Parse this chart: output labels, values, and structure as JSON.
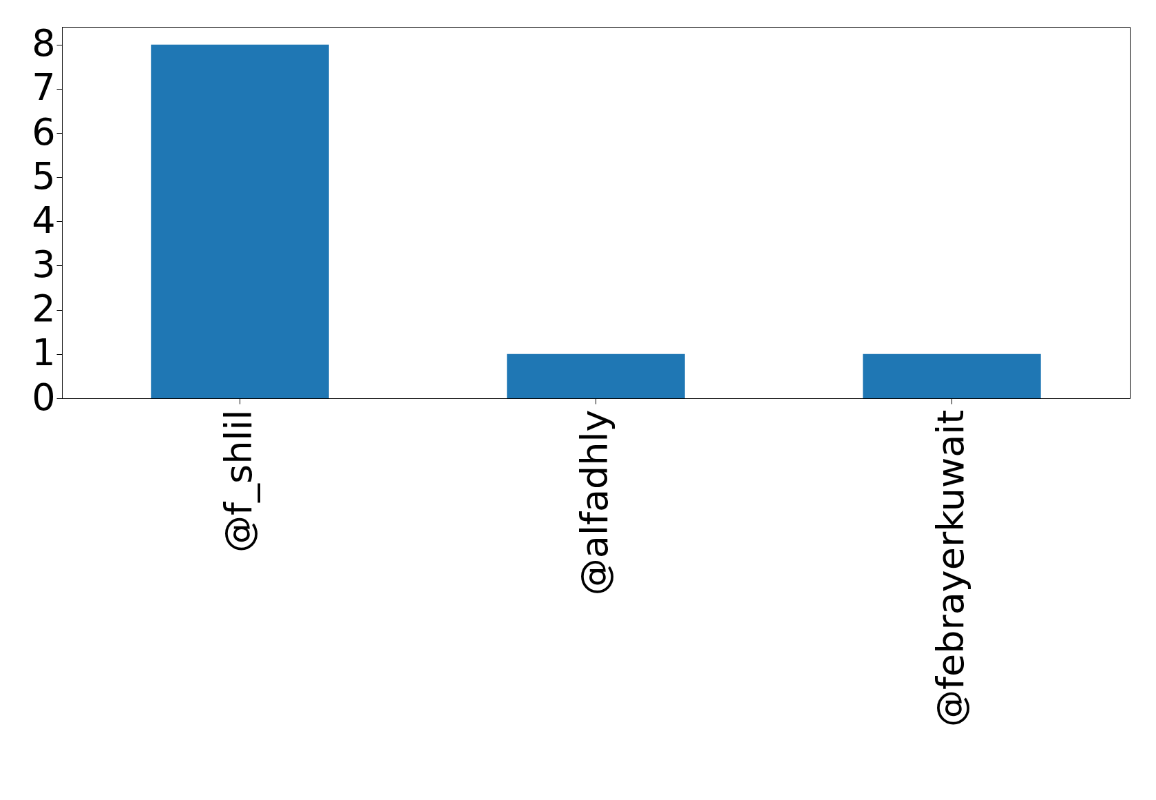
{
  "chart_data": {
    "type": "bar",
    "categories": [
      "@f_shlil",
      "@alfadhly",
      "@febrayerkuwait"
    ],
    "values": [
      8,
      1,
      1
    ],
    "color": "#1f77b4",
    "ylim": [
      0,
      8.4
    ],
    "yticks": [
      0,
      1,
      2,
      3,
      4,
      5,
      6,
      7,
      8
    ],
    "grid": false
  }
}
